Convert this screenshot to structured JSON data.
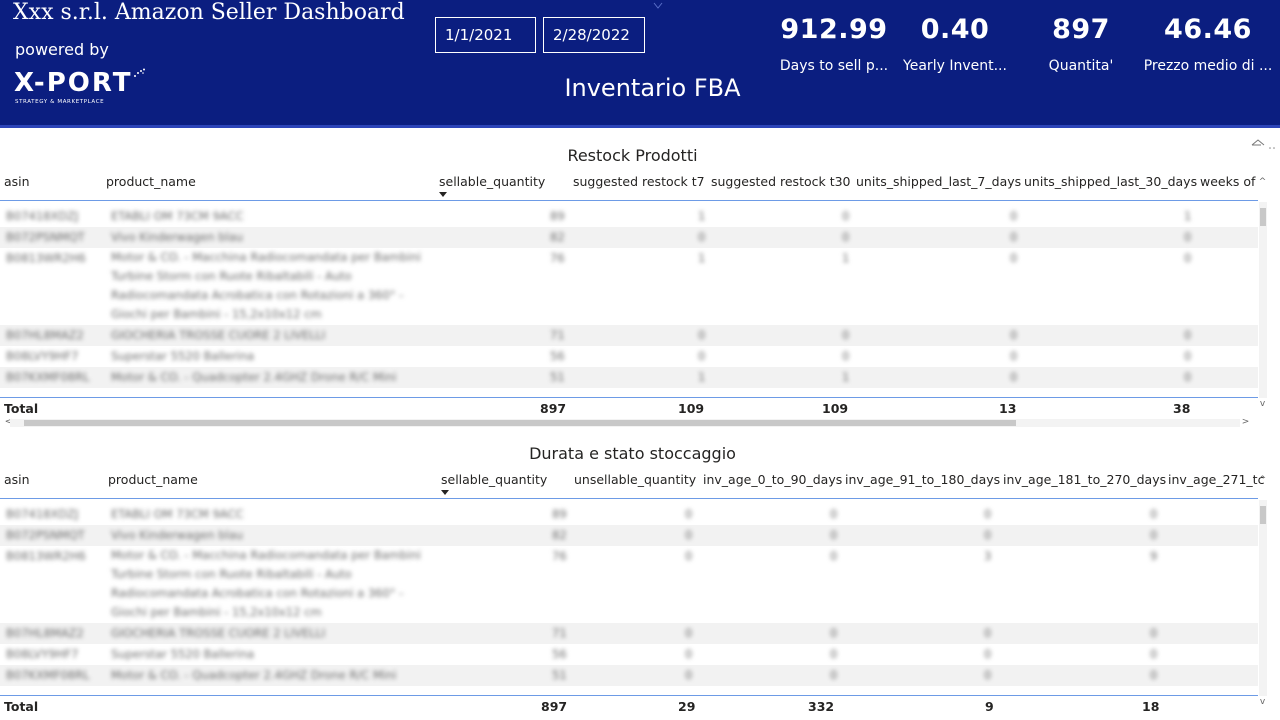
{
  "header": {
    "company_title": "Xxx s.r.l. Amazon Seller Dashboard",
    "powered_by": "powered by",
    "logo_text": "X-PORT",
    "logo_subtext": "STRATEGY & MARKETPLACE",
    "date_start": "1/1/2021",
    "date_end": "2/28/2022",
    "page_title": "Inventario FBA",
    "kpis": [
      {
        "value": "912.99",
        "label": "Days to sell p..."
      },
      {
        "value": "0.40",
        "label": "Yearly Invent..."
      },
      {
        "value": "897",
        "label": "Quantita'"
      },
      {
        "value": "46.46",
        "label": "Prezzo medio di ..."
      }
    ]
  },
  "colors": {
    "header_bg": "#0b1e80",
    "header_text": "#ffffff",
    "accent_line": "#6d9be6"
  },
  "restock": {
    "title": "Restock Prodotti",
    "columns": [
      "asin",
      "product_name",
      "sellable_quantity",
      "suggested restock t7",
      "suggested restock t30",
      "units_shipped_last_7_days",
      "units_shipped_last_30_days",
      "weeks of"
    ],
    "total": {
      "label": "Total",
      "values": [
        "897",
        "109",
        "109",
        "13",
        "38"
      ]
    }
  },
  "storage": {
    "title": "Durata e stato stoccaggio",
    "columns": [
      "asin",
      "product_name",
      "sellable_quantity",
      "unsellable_quantity",
      "inv_age_0_to_90_days",
      "inv_age_91_to_180_days",
      "inv_age_181_to_270_days",
      "inv_age_271_tc"
    ],
    "total": {
      "label": "Total",
      "values": [
        "897",
        "29",
        "332",
        "9",
        "18"
      ]
    }
  }
}
